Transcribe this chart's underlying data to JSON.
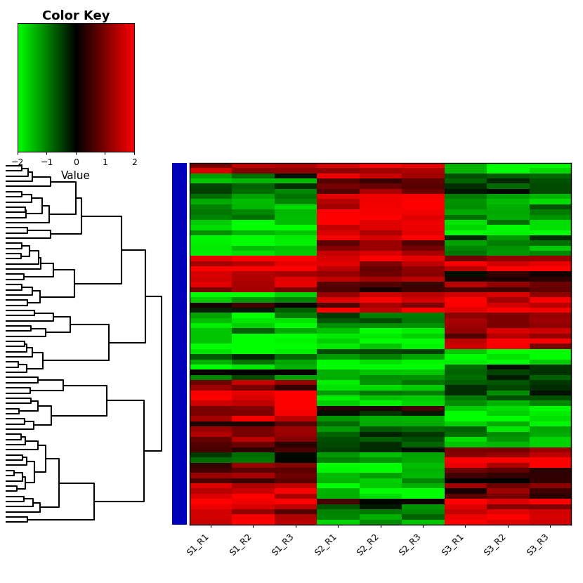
{
  "columns": [
    "S1_R1",
    "S1_R2",
    "S1_R3",
    "S2_R1",
    "S2_R2",
    "S2_R3",
    "S3_R1",
    "S3_R2",
    "S3_R3"
  ],
  "n_rows": 70,
  "colormap_min": -2,
  "colormap_max": 2,
  "colorkey_title": "Color Key",
  "colorkey_xlabel": "Value",
  "colorkey_ticks": [
    -2,
    -1,
    0,
    1,
    2
  ],
  "blue_bar_color": "#0000BB",
  "title_fontsize": 13,
  "label_fontsize": 11,
  "tick_fontsize": 9,
  "seed": 7
}
